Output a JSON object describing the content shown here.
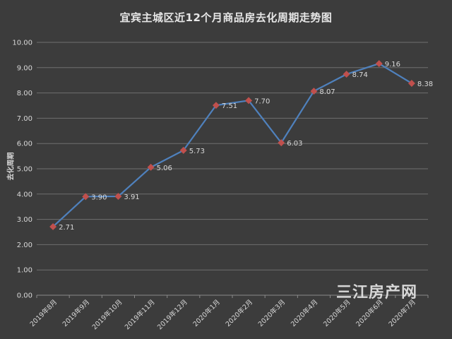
{
  "chart_data": {
    "type": "line",
    "title": "宜宾主城区近12个月商品房去化周期走势图",
    "ylabel": "去化周期",
    "xlabel": "",
    "ylim": [
      0,
      10
    ],
    "yticks": [
      "0.00",
      "1.00",
      "2.00",
      "3.00",
      "4.00",
      "5.00",
      "6.00",
      "7.00",
      "8.00",
      "9.00",
      "10.00"
    ],
    "grid": true,
    "categories": [
      "2019年8月",
      "2019年9月",
      "2019年10月",
      "2019年11月",
      "2019年12月",
      "2020年1月",
      "2020年2月",
      "2020年3月",
      "2020年4月",
      "2020年5月",
      "2020年6月",
      "2020年7月"
    ],
    "series": [
      {
        "values": [
          2.71,
          3.9,
          3.91,
          5.06,
          5.73,
          7.51,
          7.7,
          6.03,
          8.07,
          8.74,
          9.16,
          8.38
        ],
        "labels": [
          "2.71",
          "3.90",
          "3.91",
          "5.06",
          "5.73",
          "7.51",
          "7.70",
          "6.03",
          "8.07",
          "8.74",
          "9.16",
          "8.38"
        ]
      }
    ],
    "colors": {
      "line": "#4f81bd",
      "marker": "#c0504d",
      "grid": "#6f6f6f",
      "text": "#d9d9d9"
    }
  },
  "watermark": "三江房产网"
}
